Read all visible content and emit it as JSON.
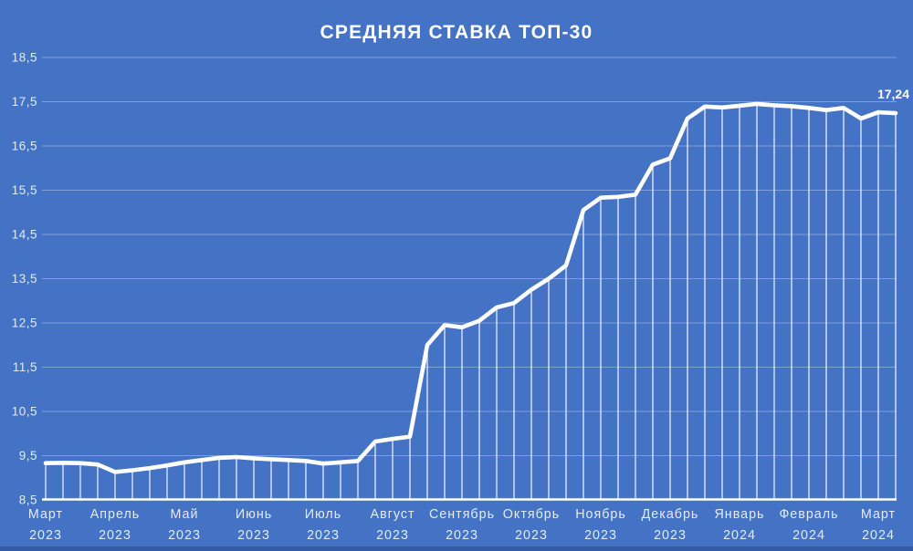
{
  "chart_data": {
    "type": "line",
    "title": "СРЕДНЯЯ СТАВКА ТОП-30",
    "categories": [
      "Март 2023",
      "Апрель 2023",
      "Май 2023",
      "Июнь 2023",
      "Июль 2023",
      "Август 2023",
      "Сентябрь 2023",
      "Октябрь 2023",
      "Ноябрь 2023",
      "Декабрь 2023",
      "Январь 2024",
      "Февраль 2024",
      "Март 2024"
    ],
    "points_per_month": 4,
    "values": [
      9.33,
      9.34,
      9.33,
      9.3,
      9.13,
      9.17,
      9.22,
      9.28,
      9.35,
      9.4,
      9.45,
      9.47,
      9.44,
      9.42,
      9.4,
      9.38,
      9.32,
      9.35,
      9.38,
      9.82,
      9.88,
      9.93,
      12.0,
      12.45,
      12.4,
      12.55,
      12.85,
      12.95,
      13.25,
      13.5,
      13.8,
      15.05,
      15.33,
      15.35,
      15.4,
      16.08,
      16.22,
      17.12,
      17.39,
      17.37,
      17.41,
      17.45,
      17.42,
      17.4,
      17.36,
      17.31,
      17.36,
      17.12,
      17.26,
      17.24
    ],
    "ylim": [
      8.5,
      18.5
    ],
    "ytick_step": 1.0,
    "ytick_labels": [
      "8,5",
      "9,5",
      "10,5",
      "11,5",
      "12,5",
      "13,5",
      "14,5",
      "15,5",
      "16,5",
      "17,5",
      "18,5"
    ],
    "last_value_label": "17,24",
    "grid": true,
    "legend": false,
    "drop_lines": true,
    "colors": {
      "background": "#4472c4",
      "line": "#ffffff",
      "grid": "rgba(255,255,255,0.33)",
      "axis_line": "#ffffff",
      "tick_text": "#e3ebf7",
      "title_text": "#ffffff",
      "end_label_text": "#ffffff"
    }
  }
}
